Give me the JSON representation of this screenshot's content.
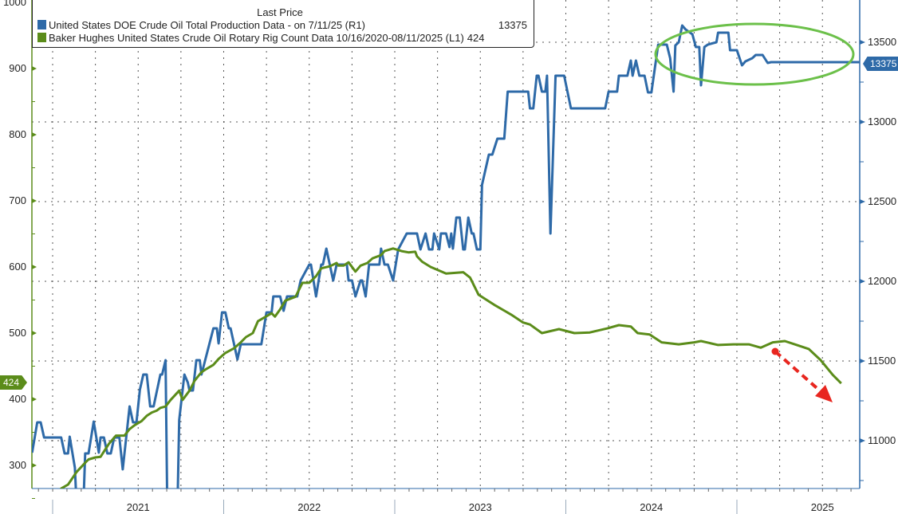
{
  "chart_data": {
    "type": "line",
    "legend": {
      "header": "Last Price",
      "placement": "top-left",
      "items": [
        {
          "label": "United States DOE Crude Oil Total Production Data -  on 7/11/25  (R1)",
          "value": "13375",
          "color": "#2e6aa8"
        },
        {
          "label": "Baker Hughes United States Crude Oil Rotary Rig Count Data 10/16/2020-08/11/2025   (L1)",
          "value": "424",
          "color": "#5b8c1a"
        }
      ]
    },
    "x_axis": {
      "unit": "year",
      "tick_labels": [
        "2021",
        "2022",
        "2023",
        "2024",
        "2025"
      ],
      "range": [
        2020.88,
        2025.72
      ]
    },
    "y_left": {
      "range": [
        270,
        1000
      ],
      "tick_labels": [
        "1000",
        "900",
        "800",
        "700",
        "600",
        "500",
        "400",
        "300"
      ],
      "tick_values": [
        1000,
        900,
        800,
        700,
        600,
        500,
        400,
        300
      ]
    },
    "y_right": {
      "range": [
        10670,
        13710
      ],
      "tick_labels": [
        "13500",
        "13000",
        "12500",
        "12000",
        "11500",
        "11000"
      ],
      "tick_values": [
        13500,
        13000,
        12500,
        12000,
        11500,
        11000
      ]
    },
    "grid": true,
    "last_value_tags": {
      "left": "424",
      "right": "13375"
    },
    "series": [
      {
        "name": "US Crude Oil Production",
        "axis": "right",
        "color": "#2e6aa8",
        "x": [
          2020.88,
          2020.91,
          2020.93,
          2020.95,
          2021.05,
          2021.07,
          2021.09,
          2021.1,
          2021.13,
          2021.14,
          2021.18,
          2021.19,
          2021.21,
          2021.24,
          2021.27,
          2021.28,
          2021.3,
          2021.32,
          2021.34,
          2021.36,
          2021.39,
          2021.41,
          2021.45,
          2021.47,
          2021.49,
          2021.51,
          2021.53,
          2021.55,
          2021.57,
          2021.59,
          2021.63,
          2021.64,
          2021.66,
          2021.67,
          2021.73,
          2021.74,
          2021.77,
          2021.79,
          2021.8,
          2021.82,
          2021.84,
          2021.86,
          2021.87,
          2021.94,
          2021.96,
          2021.97,
          2021.99,
          2022.01,
          2022.03,
          2022.04,
          2022.08,
          2022.1,
          2022.22,
          2022.25,
          2022.28,
          2022.29,
          2022.33,
          2022.35,
          2022.37,
          2022.43,
          2022.45,
          2022.5,
          2022.51,
          2022.54,
          2022.57,
          2022.58,
          2022.6,
          2022.64,
          2022.66,
          2022.72,
          2022.73,
          2022.75,
          2022.77,
          2022.8,
          2022.81,
          2022.83,
          2022.85,
          2022.91,
          2022.92,
          2022.94,
          2022.96,
          2022.99,
          2023.02,
          2023.07,
          2023.13,
          2023.15,
          2023.18,
          2023.2,
          2023.22,
          2023.23,
          2023.26,
          2023.27,
          2023.3,
          2023.32,
          2023.33,
          2023.34,
          2023.36,
          2023.38,
          2023.4,
          2023.41,
          2023.43,
          2023.45,
          2023.46,
          2023.48,
          2023.5,
          2023.51,
          2023.55,
          2023.57,
          2023.6,
          2023.64,
          2023.66,
          2023.78,
          2023.79,
          2023.81,
          2023.83,
          2023.84,
          2023.86,
          2023.88,
          2023.89,
          2023.91,
          2023.94,
          2023.99,
          2024.03,
          2024.23,
          2024.25,
          2024.3,
          2024.31,
          2024.36,
          2024.38,
          2024.39,
          2024.41,
          2024.43,
          2024.46,
          2024.48,
          2024.5,
          2024.54,
          2024.59,
          2024.61,
          2024.63,
          2024.64,
          2024.66,
          2024.68,
          2024.7,
          2024.74,
          2024.76,
          2024.78,
          2024.79,
          2024.81,
          2024.83,
          2024.88,
          2024.89,
          2024.93,
          2024.95,
          2024.96,
          2025.0,
          2025.03,
          2025.05,
          2025.09,
          2025.11,
          2025.15,
          2025.18,
          2025.2,
          2025.53
        ],
        "y": [
          10925,
          11115,
          11115,
          11020,
          11020,
          10920,
          10920,
          11025,
          10830,
          10600,
          10600,
          10920,
          10920,
          11120,
          10925,
          11020,
          11020,
          10920,
          10920,
          11020,
          11020,
          10820,
          11215,
          11115,
          11115,
          11320,
          11415,
          11415,
          11215,
          11215,
          11415,
          11415,
          11505,
          10600,
          10600,
          11130,
          11415,
          11365,
          11315,
          11315,
          11505,
          11505,
          11415,
          11705,
          11705,
          11610,
          11805,
          11805,
          11705,
          11705,
          11510,
          11605,
          11605,
          11805,
          11805,
          11905,
          11905,
          11815,
          11905,
          11905,
          12005,
          12105,
          12105,
          11905,
          12105,
          12105,
          12205,
          12005,
          12105,
          12105,
          12005,
          12005,
          11905,
          12005,
          12005,
          11905,
          12105,
          12105,
          12205,
          12105,
          12105,
          12005,
          12200,
          12300,
          12300,
          12200,
          12300,
          12200,
          12200,
          12300,
          12200,
          12300,
          12300,
          12215,
          12300,
          12205,
          12400,
          12400,
          12200,
          12200,
          12400,
          12300,
          12300,
          12200,
          12200,
          12605,
          12795,
          12795,
          12895,
          12895,
          13190,
          13190,
          13085,
          13085,
          13290,
          13290,
          13190,
          13190,
          13290,
          12300,
          13290,
          13290,
          13085,
          13085,
          13190,
          13190,
          13290,
          13290,
          13385,
          13290,
          13385,
          13290,
          13290,
          13185,
          13185,
          13485,
          13485,
          13400,
          13190,
          13480,
          13500,
          13605,
          13580,
          13550,
          13470,
          13470,
          13230,
          13470,
          13485,
          13500,
          13560,
          13560,
          13560,
          13450,
          13450,
          13355,
          13380,
          13400,
          13420,
          13420,
          13370,
          13375,
          13375
        ]
      },
      {
        "name": "Baker Hughes Oil Rig Count",
        "axis": "left",
        "color": "#5b8c1a",
        "x": [
          2020.88,
          2021.05,
          2021.09,
          2021.14,
          2021.19,
          2021.21,
          2021.25,
          2021.28,
          2021.33,
          2021.37,
          2021.42,
          2021.45,
          2021.48,
          2021.52,
          2021.55,
          2021.58,
          2021.61,
          2021.63,
          2021.66,
          2021.69,
          2021.74,
          2021.76,
          2021.8,
          2021.83,
          2021.87,
          2021.9,
          2021.94,
          2021.97,
          2022.01,
          2022.06,
          2022.1,
          2022.13,
          2022.17,
          2022.2,
          2022.24,
          2022.28,
          2022.3,
          2022.33,
          2022.36,
          2022.42,
          2022.46,
          2022.5,
          2022.54,
          2022.57,
          2022.62,
          2022.66,
          2022.67,
          2022.7,
          2022.73,
          2022.77,
          2022.8,
          2022.84,
          2022.87,
          2022.92,
          2022.94,
          2022.99,
          2023.04,
          2023.08,
          2023.12,
          2023.13,
          2023.16,
          2023.21,
          2023.3,
          2023.4,
          2023.44,
          2023.49,
          2023.58,
          2023.68,
          2023.75,
          2023.79,
          2023.86,
          2023.96,
          2024.05,
          2024.14,
          2024.24,
          2024.31,
          2024.38,
          2024.42,
          2024.49,
          2024.56,
          2024.66,
          2024.75,
          2024.79,
          2024.89,
          2024.98,
          2025.07,
          2025.14,
          2025.21,
          2025.28,
          2025.35,
          2025.42,
          2025.49,
          2025.56,
          2025.61
        ],
        "y": [
          210,
          265,
          271,
          290,
          304,
          309,
          312,
          313,
          333,
          345,
          345,
          355,
          361,
          367,
          375,
          380,
          383,
          387,
          389,
          399,
          413,
          399,
          413,
          428,
          441,
          446,
          452,
          461,
          470,
          477,
          486,
          494,
          500,
          518,
          524,
          530,
          525,
          536,
          549,
          555,
          576,
          576,
          586,
          598,
          601,
          606,
          602,
          602,
          607,
          593,
          602,
          606,
          613,
          618,
          624,
          628,
          624,
          622,
          623,
          616,
          608,
          600,
          590,
          592,
          584,
          558,
          543,
          528,
          516,
          513,
          500,
          506,
          500,
          501,
          507,
          512,
          510,
          500,
          498,
          486,
          483,
          486,
          488,
          482,
          483,
          483,
          478,
          486,
          488,
          482,
          476,
          459,
          437,
          424
        ]
      }
    ],
    "annotations": [
      {
        "type": "ellipse",
        "color": "#6cc04a",
        "around": "production peak 2024-2025"
      },
      {
        "type": "dashed-arrow",
        "color": "#e8261f",
        "direction": "down-right",
        "from": [
          2025.14,
          483
        ]
      }
    ]
  }
}
